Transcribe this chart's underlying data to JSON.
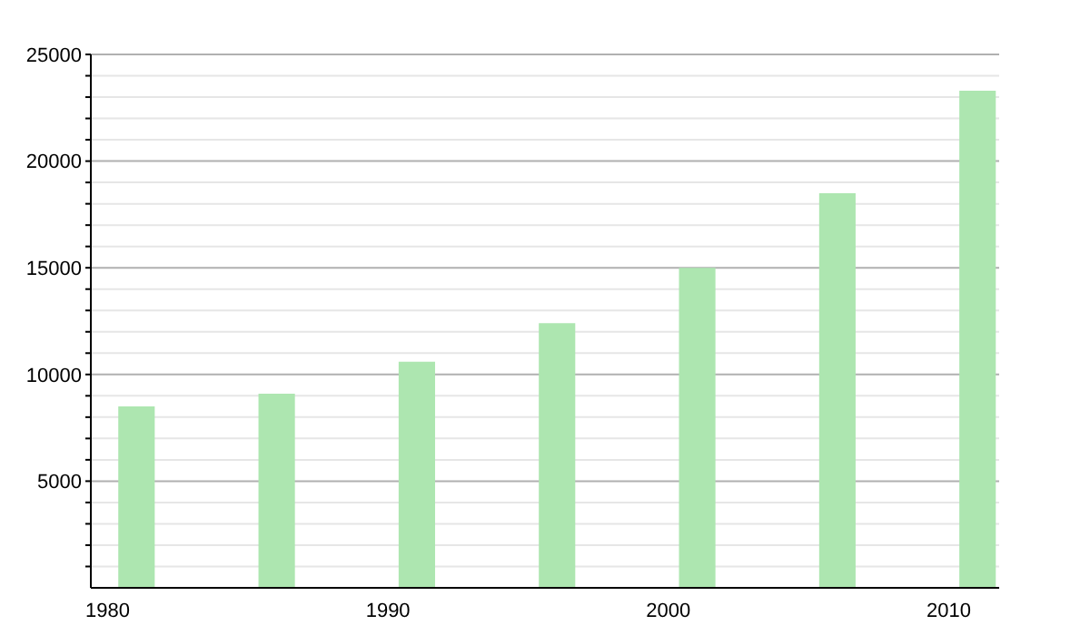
{
  "chart_data": {
    "type": "bar",
    "x": [
      1981,
      1986,
      1991,
      1996,
      2001,
      2006,
      2011
    ],
    "values": [
      8500,
      9100,
      10600,
      12400,
      15000,
      18500,
      23300
    ],
    "color": "#ade6b0",
    "xlim": [
      1979.4,
      2011.8
    ],
    "xticks": [
      1980,
      1990,
      2000,
      2010
    ],
    "ylim": [
      0,
      25000
    ],
    "yticks": [
      {
        "value": 1000,
        "label": null
      },
      {
        "value": 2000,
        "label": null
      },
      {
        "value": 3000,
        "label": null
      },
      {
        "value": 4000,
        "label": null
      },
      5000,
      {
        "value": 6000,
        "label": null
      },
      {
        "value": 7000,
        "label": null
      },
      {
        "value": 8000,
        "label": null
      },
      {
        "value": 9000,
        "label": null
      },
      10000,
      {
        "value": 11000,
        "label": null
      },
      {
        "value": 12000,
        "label": null
      },
      {
        "value": 13000,
        "label": null
      },
      {
        "value": 14000,
        "label": null
      },
      15000,
      {
        "value": 16000,
        "label": null
      },
      {
        "value": 17000,
        "label": null
      },
      {
        "value": 18000,
        "label": null
      },
      {
        "value": 19000,
        "label": null
      },
      20000,
      {
        "value": 21000,
        "label": null
      },
      {
        "value": 22000,
        "label": null
      },
      {
        "value": 23000,
        "label": null
      },
      {
        "value": 24000,
        "label": null
      },
      25000
    ],
    "grid": "y"
  }
}
